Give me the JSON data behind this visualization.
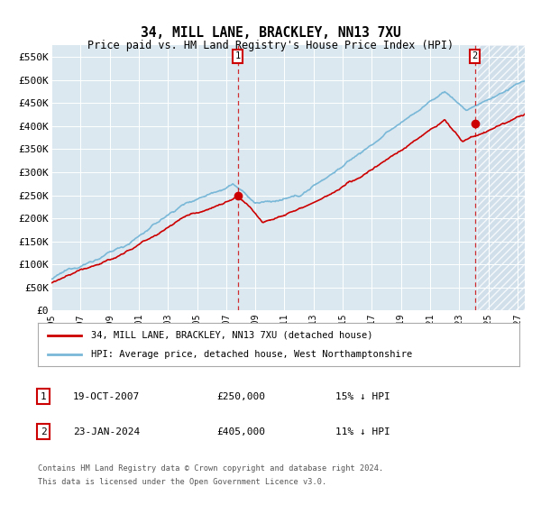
{
  "title": "34, MILL LANE, BRACKLEY, NN13 7XU",
  "subtitle": "Price paid vs. HM Land Registry's House Price Index (HPI)",
  "ylabel_ticks": [
    "£0",
    "£50K",
    "£100K",
    "£150K",
    "£200K",
    "£250K",
    "£300K",
    "£350K",
    "£400K",
    "£450K",
    "£500K",
    "£550K"
  ],
  "ytick_values": [
    0,
    50000,
    100000,
    150000,
    200000,
    250000,
    300000,
    350000,
    400000,
    450000,
    500000,
    550000
  ],
  "ylim": [
    0,
    575000
  ],
  "xlim_start": 1995.0,
  "xlim_end": 2027.5,
  "transaction1_date": 2007.8,
  "transaction1_price": 250000,
  "transaction2_date": 2024.07,
  "transaction2_price": 405000,
  "hpi_color": "#7ab8d8",
  "price_color": "#cc0000",
  "hatch_start": 2024.2,
  "legend_label1": "34, MILL LANE, BRACKLEY, NN13 7XU (detached house)",
  "legend_label2": "HPI: Average price, detached house, West Northamptonshire",
  "annotation1_date": "19-OCT-2007",
  "annotation1_price": "£250,000",
  "annotation1_hpi": "15% ↓ HPI",
  "annotation2_date": "23-JAN-2024",
  "annotation2_price": "£405,000",
  "annotation2_hpi": "11% ↓ HPI",
  "footer1": "Contains HM Land Registry data © Crown copyright and database right 2024.",
  "footer2": "This data is licensed under the Open Government Licence v3.0.",
  "plot_bg_color": "#dce8f0",
  "grid_color": "#ffffff",
  "hatch_bg_color": "#c8d8e8"
}
